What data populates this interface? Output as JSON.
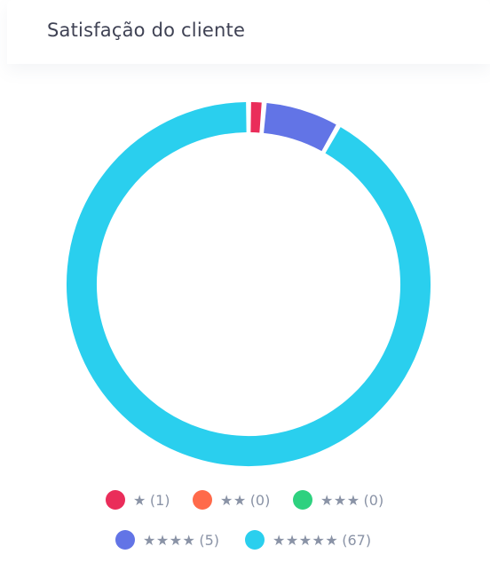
{
  "card": {
    "title": "Satisfação do cliente"
  },
  "chart_data": {
    "type": "pie",
    "subtype": "donut",
    "title": "",
    "categories": [
      "★",
      "★★",
      "★★★",
      "★★★★",
      "★★★★★"
    ],
    "values": [
      1,
      0,
      0,
      5,
      67
    ],
    "colors": [
      "#ea2d5a",
      "#ff6a4a",
      "#2ed17f",
      "#6274e6",
      "#2acfee"
    ],
    "legend_position": "bottom",
    "legend": [
      {
        "stars": "★",
        "count": "(1)"
      },
      {
        "stars": "★★",
        "count": "(0)"
      },
      {
        "stars": "★★★",
        "count": "(0)"
      },
      {
        "stars": "★★★★",
        "count": "(5)"
      },
      {
        "stars": "★★★★★",
        "count": "(67)"
      }
    ]
  }
}
